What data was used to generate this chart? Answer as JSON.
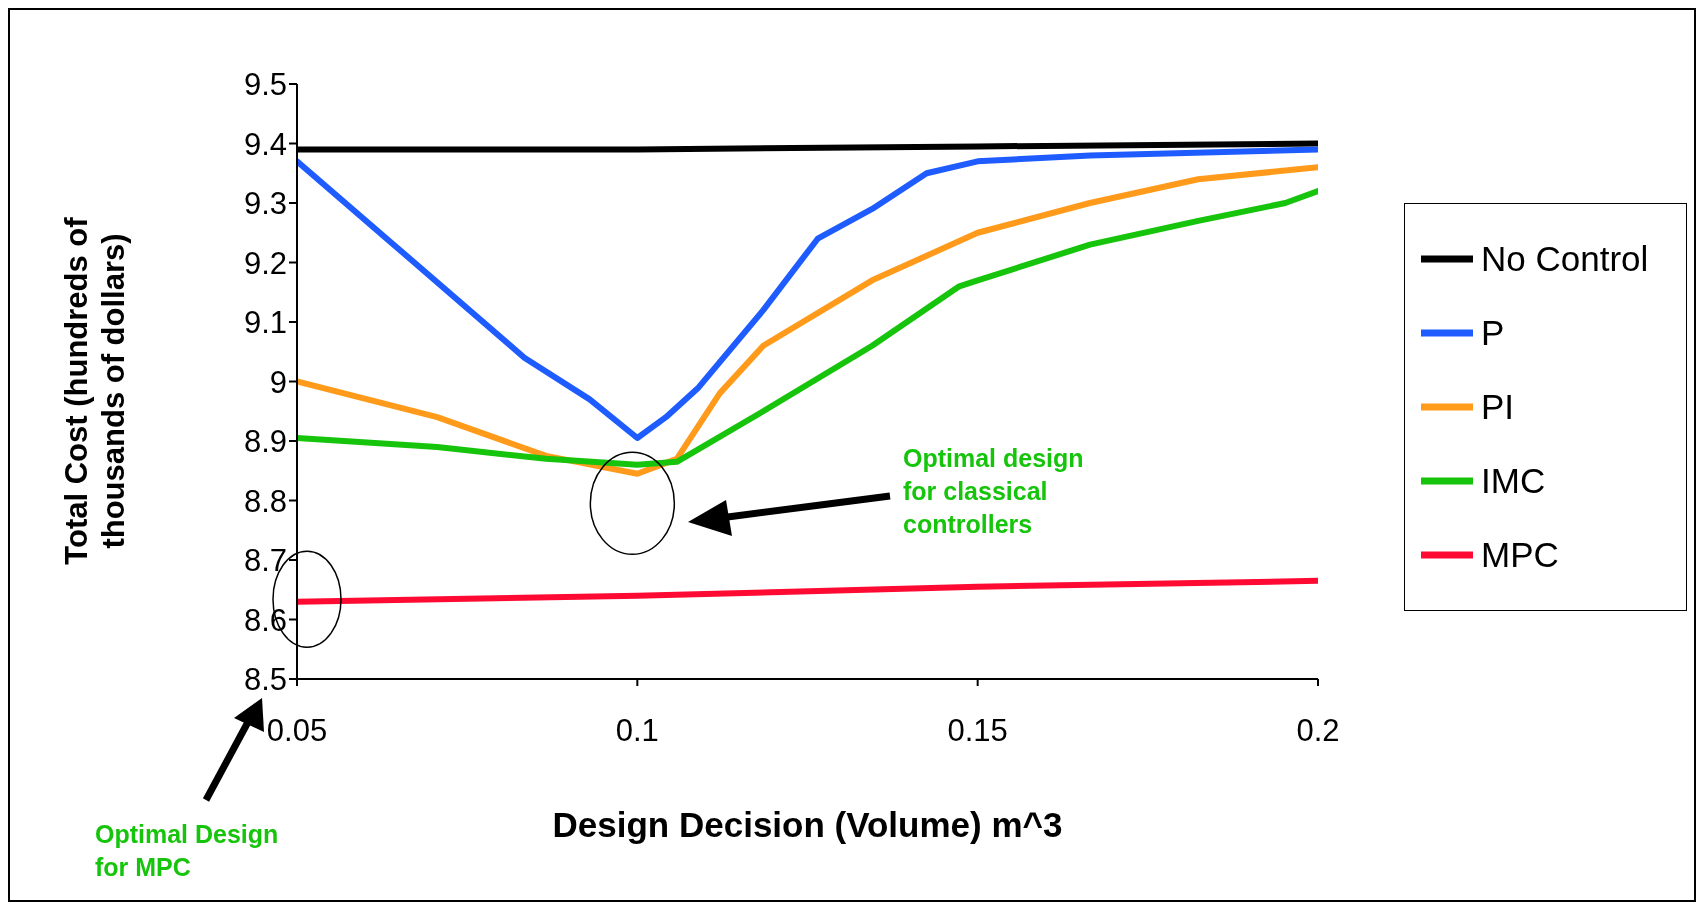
{
  "chart_data": {
    "type": "line",
    "xlabel": "Design Decision (Volume) m^3",
    "ylabel": "Total Cost (hundreds of thousands of dollars)",
    "xlim": [
      0.05,
      0.2
    ],
    "xticks": [
      0.05,
      0.1,
      0.15,
      0.2
    ],
    "ylim": [
      8.5,
      9.5
    ],
    "yticks": [
      8.5,
      8.6,
      8.7,
      8.8,
      8.9,
      9,
      9.1,
      9.2,
      9.3,
      9.4,
      9.5
    ],
    "grid": false,
    "legend": "right",
    "marker": "none",
    "line_style": "solid",
    "series": [
      {
        "name": "No Control",
        "color": "#000000",
        "x": [
          0.05,
          0.1,
          0.15,
          0.2
        ],
        "values": [
          9.39,
          9.39,
          9.395,
          9.4
        ]
      },
      {
        "name": "P",
        "color": "#1f5cff",
        "x": [
          0.05,
          0.0642,
          0.0834,
          0.093,
          0.1,
          0.1042,
          0.109,
          0.1185,
          0.1265,
          0.1345,
          0.1425,
          0.15,
          0.1665,
          0.2
        ],
        "values": [
          9.37,
          9.23,
          9.04,
          8.97,
          8.905,
          8.94,
          8.99,
          9.12,
          9.24,
          9.29,
          9.35,
          9.37,
          9.38,
          9.39
        ]
      },
      {
        "name": "PI",
        "color": "#ff9a1a",
        "x": [
          0.05,
          0.0706,
          0.0866,
          0.1,
          0.1058,
          0.1121,
          0.1185,
          0.1345,
          0.15,
          0.1665,
          0.1824,
          0.2
        ],
        "values": [
          9.0,
          8.94,
          8.875,
          8.845,
          8.87,
          8.98,
          9.06,
          9.17,
          9.25,
          9.3,
          9.34,
          9.36
        ]
      },
      {
        "name": "IMC",
        "color": "#16c40c",
        "x": [
          0.05,
          0.0706,
          0.0866,
          0.1,
          0.1058,
          0.1185,
          0.1345,
          0.1473,
          0.15,
          0.1665,
          0.1824,
          0.1952,
          0.2
        ],
        "values": [
          8.905,
          8.89,
          8.87,
          8.86,
          8.865,
          8.95,
          9.06,
          9.16,
          9.17,
          9.23,
          9.27,
          9.3,
          9.32
        ]
      },
      {
        "name": "MPC",
        "color": "#ff0a32",
        "x": [
          0.05,
          0.1,
          0.15,
          0.2
        ],
        "values": [
          8.63,
          8.64,
          8.655,
          8.665
        ]
      }
    ],
    "annotations": [
      "Optimal design for classical controllers",
      "Optimal Design for MPC"
    ]
  }
}
